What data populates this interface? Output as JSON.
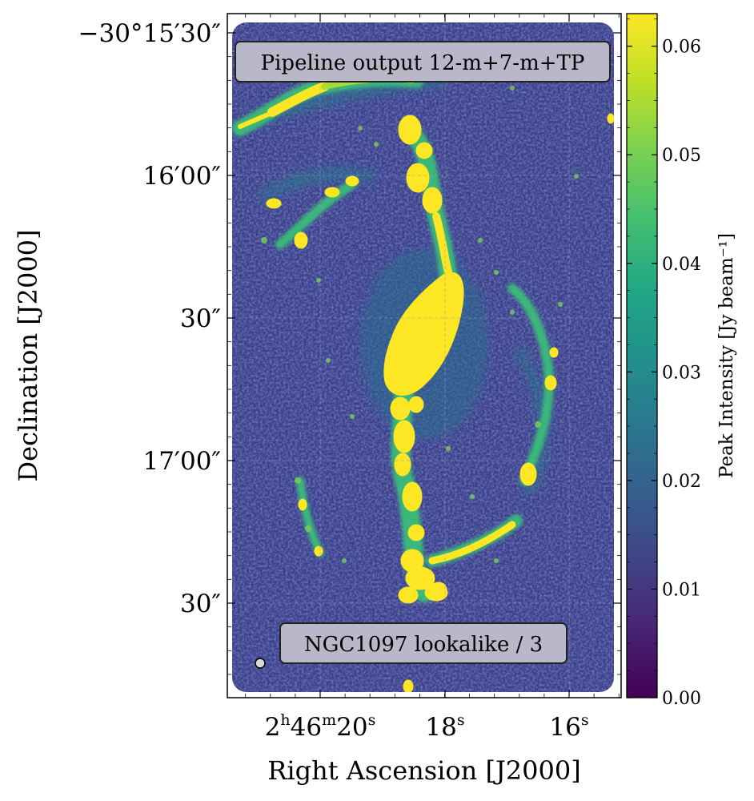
{
  "chart_data": {
    "type": "heatmap",
    "title": "",
    "xlabel": "Right Ascension [J2000]",
    "ylabel": "Declination [J2000]",
    "x_ticks": [
      {
        "label": "2h46m20s",
        "base": "2",
        "sup1": "h",
        "mid": "46",
        "sup2": "m",
        "tail": "20",
        "sup3": "s",
        "value": "02:46:20"
      },
      {
        "label": "18s",
        "base": "18",
        "sup1": "s",
        "value": "02:46:18"
      },
      {
        "label": "16s",
        "base": "16",
        "sup1": "s",
        "value": "02:46:16"
      }
    ],
    "y_ticks": [
      {
        "label": "−30°15′30″",
        "value": "-30:15:30"
      },
      {
        "label": "16′00″",
        "value": "-30:16:00"
      },
      {
        "label": "30″",
        "value": "-30:16:30"
      },
      {
        "label": "17′00″",
        "value": "-30:17:00"
      },
      {
        "label": "30″",
        "value": "-30:17:30"
      }
    ],
    "colorbar": {
      "label": "Peak Intensity [Jy beam⁻¹]",
      "colormap": "viridis",
      "min": 0.0,
      "max": 0.063,
      "ticks": [
        "0.00",
        "0.01",
        "0.02",
        "0.03",
        "0.04",
        "0.05",
        "0.06"
      ],
      "tick_values": [
        0.0,
        0.01,
        0.02,
        0.03,
        0.04,
        0.05,
        0.06
      ]
    },
    "annotations": {
      "top": "Pipeline output 12-m+7-m+TP",
      "bottom": "NGC1097 lookalike / 3"
    },
    "grid": true,
    "beam": "filled circle, lower-left",
    "colors": {
      "background": "#39398a",
      "saturated": "#fde725",
      "label_box": "#b9b8c9"
    }
  }
}
